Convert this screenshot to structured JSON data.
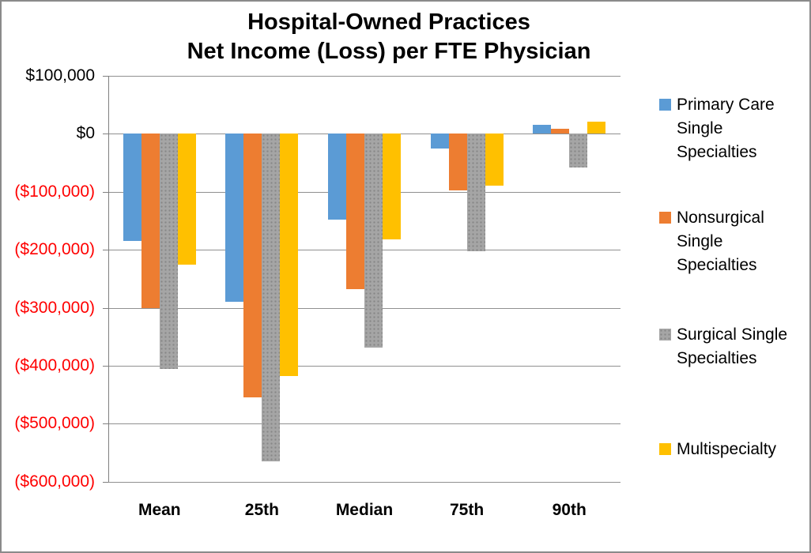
{
  "title": {
    "line1": "Hospital-Owned Practices",
    "line2": "Net Income (Loss) per FTE Physician"
  },
  "chart_data": {
    "type": "bar",
    "title": "Hospital-Owned Practices Net Income (Loss) per FTE Physician",
    "categories": [
      "Mean",
      "25th",
      "Median",
      "75th",
      "90th"
    ],
    "series": [
      {
        "name": "Primary Care Single Specialties",
        "color": "#5B9BD5",
        "pattern": "solid",
        "values": [
          -185000,
          -290000,
          -148000,
          -25000,
          16000
        ]
      },
      {
        "name": "Nonsurgical Single Specialties",
        "color": "#ED7D31",
        "pattern": "solid",
        "values": [
          -300000,
          -455000,
          -268000,
          -98000,
          9000
        ]
      },
      {
        "name": "Surgical Single Specialties",
        "color": "#A5A5A5",
        "pattern": "dotted",
        "values": [
          -406000,
          -565000,
          -369000,
          -203000,
          -58000
        ]
      },
      {
        "name": "Multispecialty",
        "color": "#FFC000",
        "pattern": "solid",
        "values": [
          -225000,
          -418000,
          -182000,
          -89000,
          21000
        ]
      }
    ],
    "y_axis": {
      "min": -600000,
      "max": 100000,
      "step": 100000,
      "tick_labels": [
        "$100,000",
        "$0",
        "($100,000)",
        "($200,000)",
        "($300,000)",
        "($400,000)",
        "($500,000)",
        "($600,000)"
      ],
      "positive_color": "#000000",
      "negative_color": "#FF0000"
    },
    "xlabel": "",
    "ylabel": "",
    "grid": true,
    "legend_position": "right"
  },
  "legend": {
    "items": [
      {
        "lines": [
          "Primary Care",
          "Single",
          "Specialties"
        ]
      },
      {
        "lines": [
          "Nonsurgical",
          "Single",
          "Specialties"
        ]
      },
      {
        "lines": [
          "Surgical Single",
          "Specialties"
        ]
      },
      {
        "lines": [
          "Multispecialty"
        ]
      }
    ]
  }
}
